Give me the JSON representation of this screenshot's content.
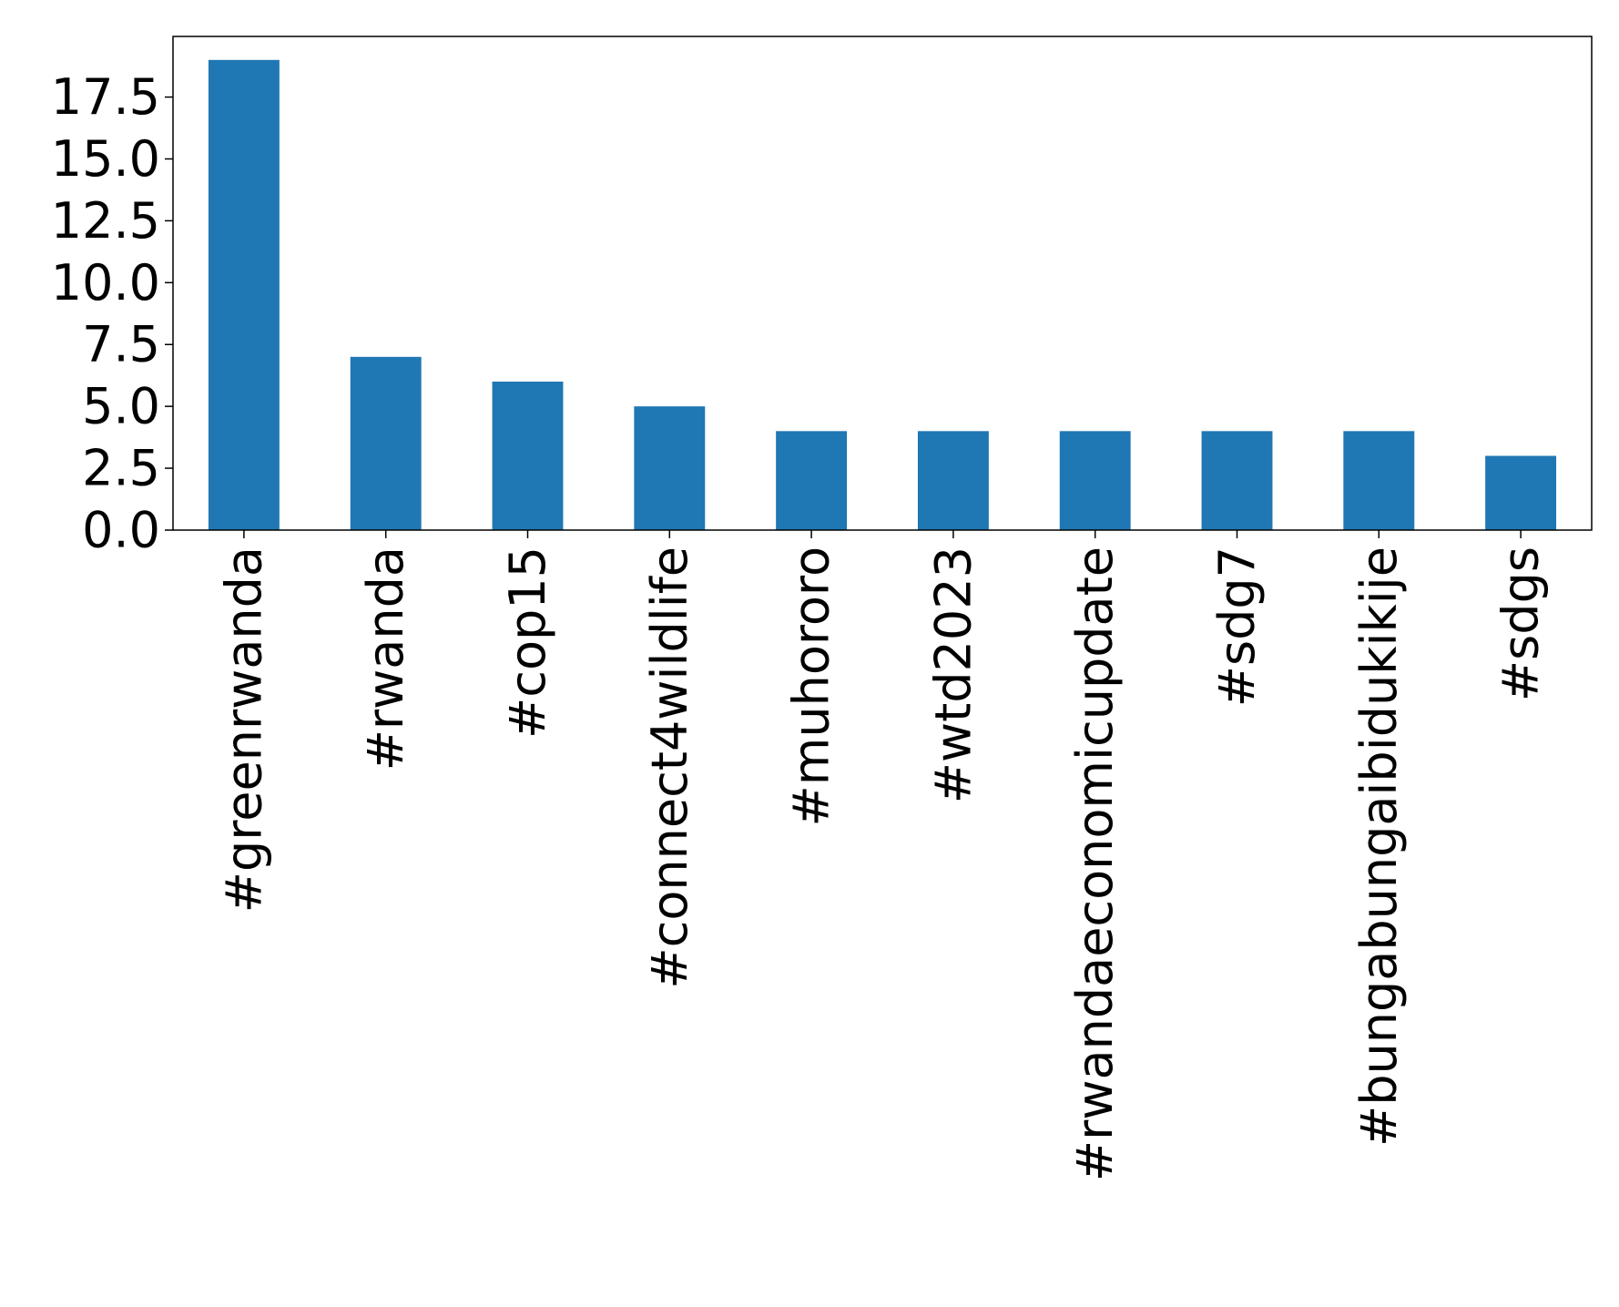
{
  "chart_data": {
    "type": "bar",
    "title": "",
    "xlabel": "",
    "ylabel": "",
    "categories": [
      "#greenrwanda",
      "#rwanda",
      "#cop15",
      "#connect4wildlife",
      "#muhororo",
      "#wtd2023",
      "#rwandaeconomicupdate",
      "#sdg7",
      "#bungabungaibidukikije",
      "#sdgs"
    ],
    "values": [
      19,
      7,
      6,
      5,
      4,
      4,
      4,
      4,
      4,
      3
    ],
    "ylim": [
      0,
      19.95
    ],
    "yticks": [
      0.0,
      2.5,
      5.0,
      7.5,
      10.0,
      12.5,
      15.0,
      17.5
    ],
    "ytick_labels": [
      "0.0",
      "2.5",
      "5.0",
      "7.5",
      "10.0",
      "12.5",
      "15.0",
      "17.5"
    ],
    "grid": false,
    "legend": "none",
    "bar_color": "#1f77b4"
  }
}
